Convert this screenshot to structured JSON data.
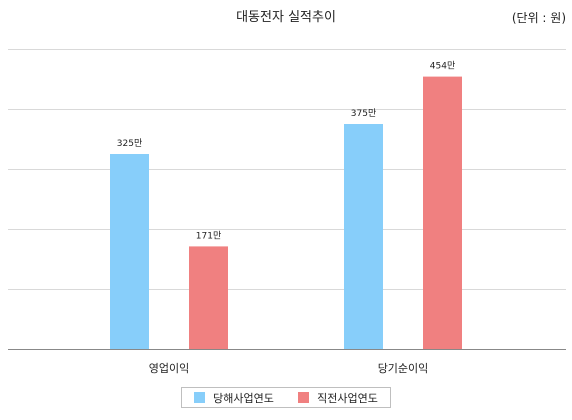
{
  "chart_data": {
    "type": "bar",
    "title": "대동전자 실적추이",
    "unit_label": "(단위 : 원)",
    "categories": [
      "영업이익",
      "당기순이익"
    ],
    "series": [
      {
        "name": "당해사업연도",
        "color": "#87CEFA",
        "values": [
          325,
          375
        ],
        "labels": [
          "325만",
          "375만"
        ]
      },
      {
        "name": "직전사업연도",
        "color": "#F08080",
        "values": [
          171,
          454
        ],
        "labels": [
          "171만",
          "454만"
        ]
      }
    ],
    "ylim": [
      0,
      500
    ],
    "grid": true,
    "legend_position": "bottom"
  }
}
